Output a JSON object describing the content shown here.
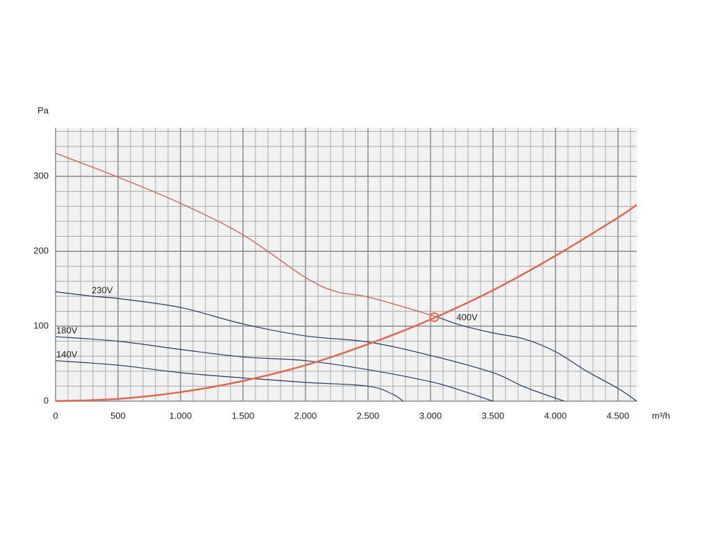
{
  "chart_data": {
    "type": "line",
    "x_label": "m³/h",
    "y_label": "Pa",
    "xlim": [
      0,
      4650
    ],
    "ylim": [
      0,
      365
    ],
    "xticks": [
      0,
      500,
      {
        "value": 1000,
        "label": "1.000"
      },
      {
        "value": 1500,
        "label": "1.500"
      },
      {
        "value": 2000,
        "label": "2.000"
      },
      {
        "value": 2500,
        "label": "2.500"
      },
      {
        "value": 3000,
        "label": "3.000"
      },
      {
        "value": 3500,
        "label": "3.500"
      },
      {
        "value": 4000,
        "label": "4.000"
      },
      {
        "value": 4500,
        "label": "4.500"
      }
    ],
    "yticks": [
      0,
      100,
      200,
      300
    ],
    "grid": true,
    "minor_grid": {
      "x": 100,
      "y": 20
    },
    "series": [
      {
        "name": "400V",
        "color": "#1f3a5f",
        "x": [
          0,
          500,
          1000,
          1500,
          2000,
          2250,
          2500,
          3000,
          3250,
          3500,
          3750,
          4000,
          4250,
          4500,
          4650
        ],
        "values": [
          331,
          299,
          264,
          222,
          165,
          146,
          139,
          115,
          101,
          91,
          83,
          66,
          40,
          17,
          0
        ]
      },
      {
        "name": "230V",
        "color": "#1f3a5f",
        "x": [
          0,
          300,
          500,
          1000,
          1500,
          2000,
          2500,
          3000,
          3500,
          3750,
          4070
        ],
        "values": [
          146,
          140,
          137,
          125,
          103,
          87,
          79,
          61,
          38,
          19,
          0
        ]
      },
      {
        "name": "180V",
        "color": "#1f3a5f",
        "x": [
          0,
          500,
          1000,
          1500,
          2000,
          2500,
          3000,
          3250,
          3500
        ],
        "values": [
          86,
          80,
          69,
          59,
          54,
          42,
          26,
          14,
          0
        ]
      },
      {
        "name": "140V",
        "color": "#1f3a5f",
        "x": [
          0,
          500,
          1000,
          1500,
          2000,
          2500,
          2700,
          2780
        ],
        "values": [
          54,
          48,
          38,
          31,
          25,
          20,
          9,
          0
        ]
      },
      {
        "color": "#e0674f",
        "width": 2.5,
        "x": [
          0,
          500,
          1000,
          1500,
          2000,
          2500,
          3000,
          3500,
          4000,
          4500,
          4650
        ],
        "values": [
          0,
          3,
          12,
          27,
          48,
          76,
          109,
          148,
          194,
          245,
          262
        ]
      }
    ],
    "operating_point": {
      "x": 3030,
      "y": 112,
      "color": "#e0674f"
    }
  }
}
